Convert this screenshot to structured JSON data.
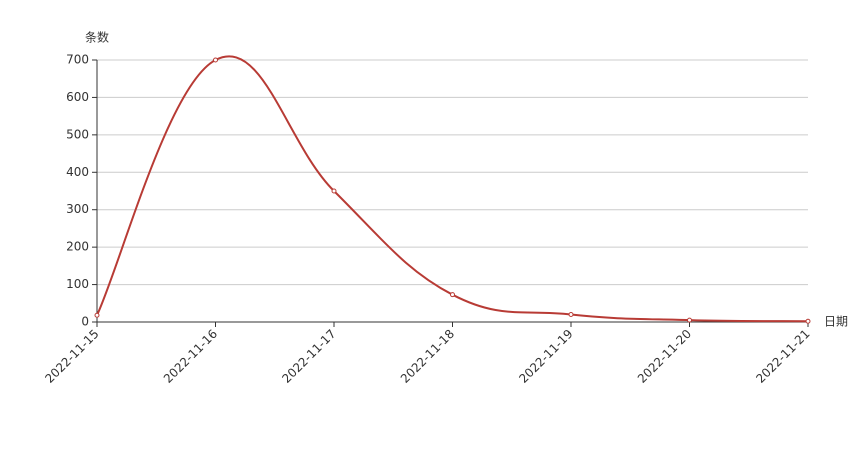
{
  "chart_data": {
    "type": "line",
    "y_axis_label": "条数",
    "x_axis_label": "日期",
    "categories": [
      "2022-11-15",
      "2022-11-16",
      "2022-11-17",
      "2022-11-18",
      "2022-11-19",
      "2022-11-20",
      "2022-11-21"
    ],
    "values": [
      18,
      700,
      350,
      73,
      20,
      5,
      2
    ],
    "color": "#b83b35",
    "ylim": [
      0,
      700
    ],
    "yticks": [
      0,
      100,
      200,
      300,
      400,
      500,
      600,
      700
    ],
    "grid": true,
    "smooth": true
  }
}
